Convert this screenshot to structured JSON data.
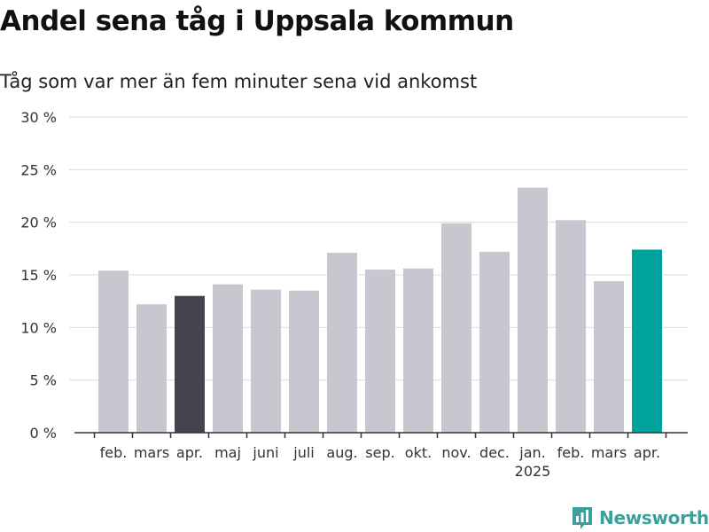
{
  "chart_data": {
    "type": "bar",
    "title": "Andel sena tåg i Uppsala kommun",
    "subtitle": "Tåg som var mer än fem minuter sena vid ankomst",
    "categories": [
      "feb.",
      "mars",
      "apr.",
      "maj",
      "juni",
      "juli",
      "aug.",
      "sep.",
      "okt.",
      "nov.",
      "dec.",
      "jan.",
      "feb.",
      "mars",
      "apr."
    ],
    "year_labels": [
      {
        "index": 11,
        "label": "2025"
      }
    ],
    "values": [
      15.4,
      12.2,
      13.0,
      14.1,
      13.6,
      13.5,
      17.1,
      15.5,
      15.6,
      19.9,
      17.2,
      23.3,
      20.2,
      14.4,
      17.4
    ],
    "y_ticks": [
      "0 %",
      "5 %",
      "10 %",
      "15 %",
      "20 %",
      "25 %",
      "30 %"
    ],
    "ylim": [
      0,
      30
    ],
    "grid": true,
    "legend": "none",
    "colors": {
      "default": "#c8c7d0",
      "previous_year_highlight": "#44434f",
      "current_highlight": "#00a39b",
      "gridline": "#dcdcdc",
      "axis": "#333333"
    },
    "highlight": {
      "2": "previous_year_highlight",
      "14": "current_highlight"
    }
  },
  "brand": {
    "name": "Newsworthy",
    "icon": "newsworthy-chart-icon"
  }
}
